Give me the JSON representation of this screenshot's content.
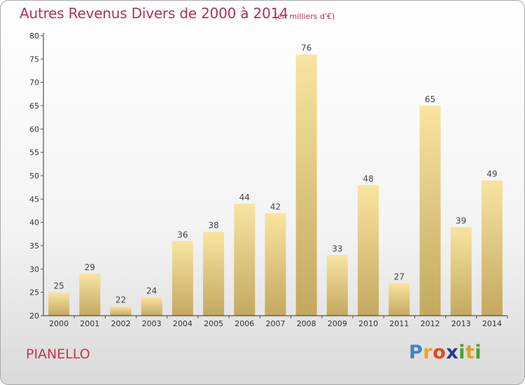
{
  "title": "Autres Revenus Divers de 2000 à 2014",
  "subtitle": "(en milliers d'€)",
  "place": "PIANELLO",
  "logo": {
    "text": "Proxiti",
    "letters": [
      "P",
      "r",
      "o",
      "x",
      "i",
      "t",
      "i"
    ]
  },
  "colors": {
    "title": "#b03058",
    "bar_light": "#f8e4a0",
    "bar_dark": "#c4a860",
    "axis": "#333333",
    "grid_tick": "#555555"
  },
  "chart_data": {
    "type": "bar",
    "title": "Autres Revenus Divers de 2000 à 2014",
    "subtitle": "(en milliers d'€)",
    "categories": [
      "2000",
      "2001",
      "2002",
      "2003",
      "2004",
      "2005",
      "2006",
      "2007",
      "2008",
      "2009",
      "2010",
      "2011",
      "2012",
      "2013",
      "2014"
    ],
    "values": [
      25,
      29,
      22,
      24,
      36,
      38,
      44,
      42,
      76,
      33,
      48,
      27,
      65,
      39,
      49
    ],
    "data_labels": [
      "25",
      "29",
      "22",
      "24",
      "36",
      "38",
      "44",
      "42",
      "76",
      "33",
      "48",
      "27",
      "65",
      "39",
      "49"
    ],
    "ylim": [
      20,
      80
    ],
    "yticks": [
      20,
      25,
      30,
      35,
      40,
      45,
      50,
      55,
      60,
      65,
      70,
      75,
      80
    ],
    "ytick_labels": [
      "20",
      "25",
      "30",
      "35",
      "40",
      "45",
      "50",
      "55",
      "60",
      "65",
      "70",
      "75",
      "80"
    ],
    "grid": false,
    "xlabel": "",
    "ylabel": ""
  }
}
